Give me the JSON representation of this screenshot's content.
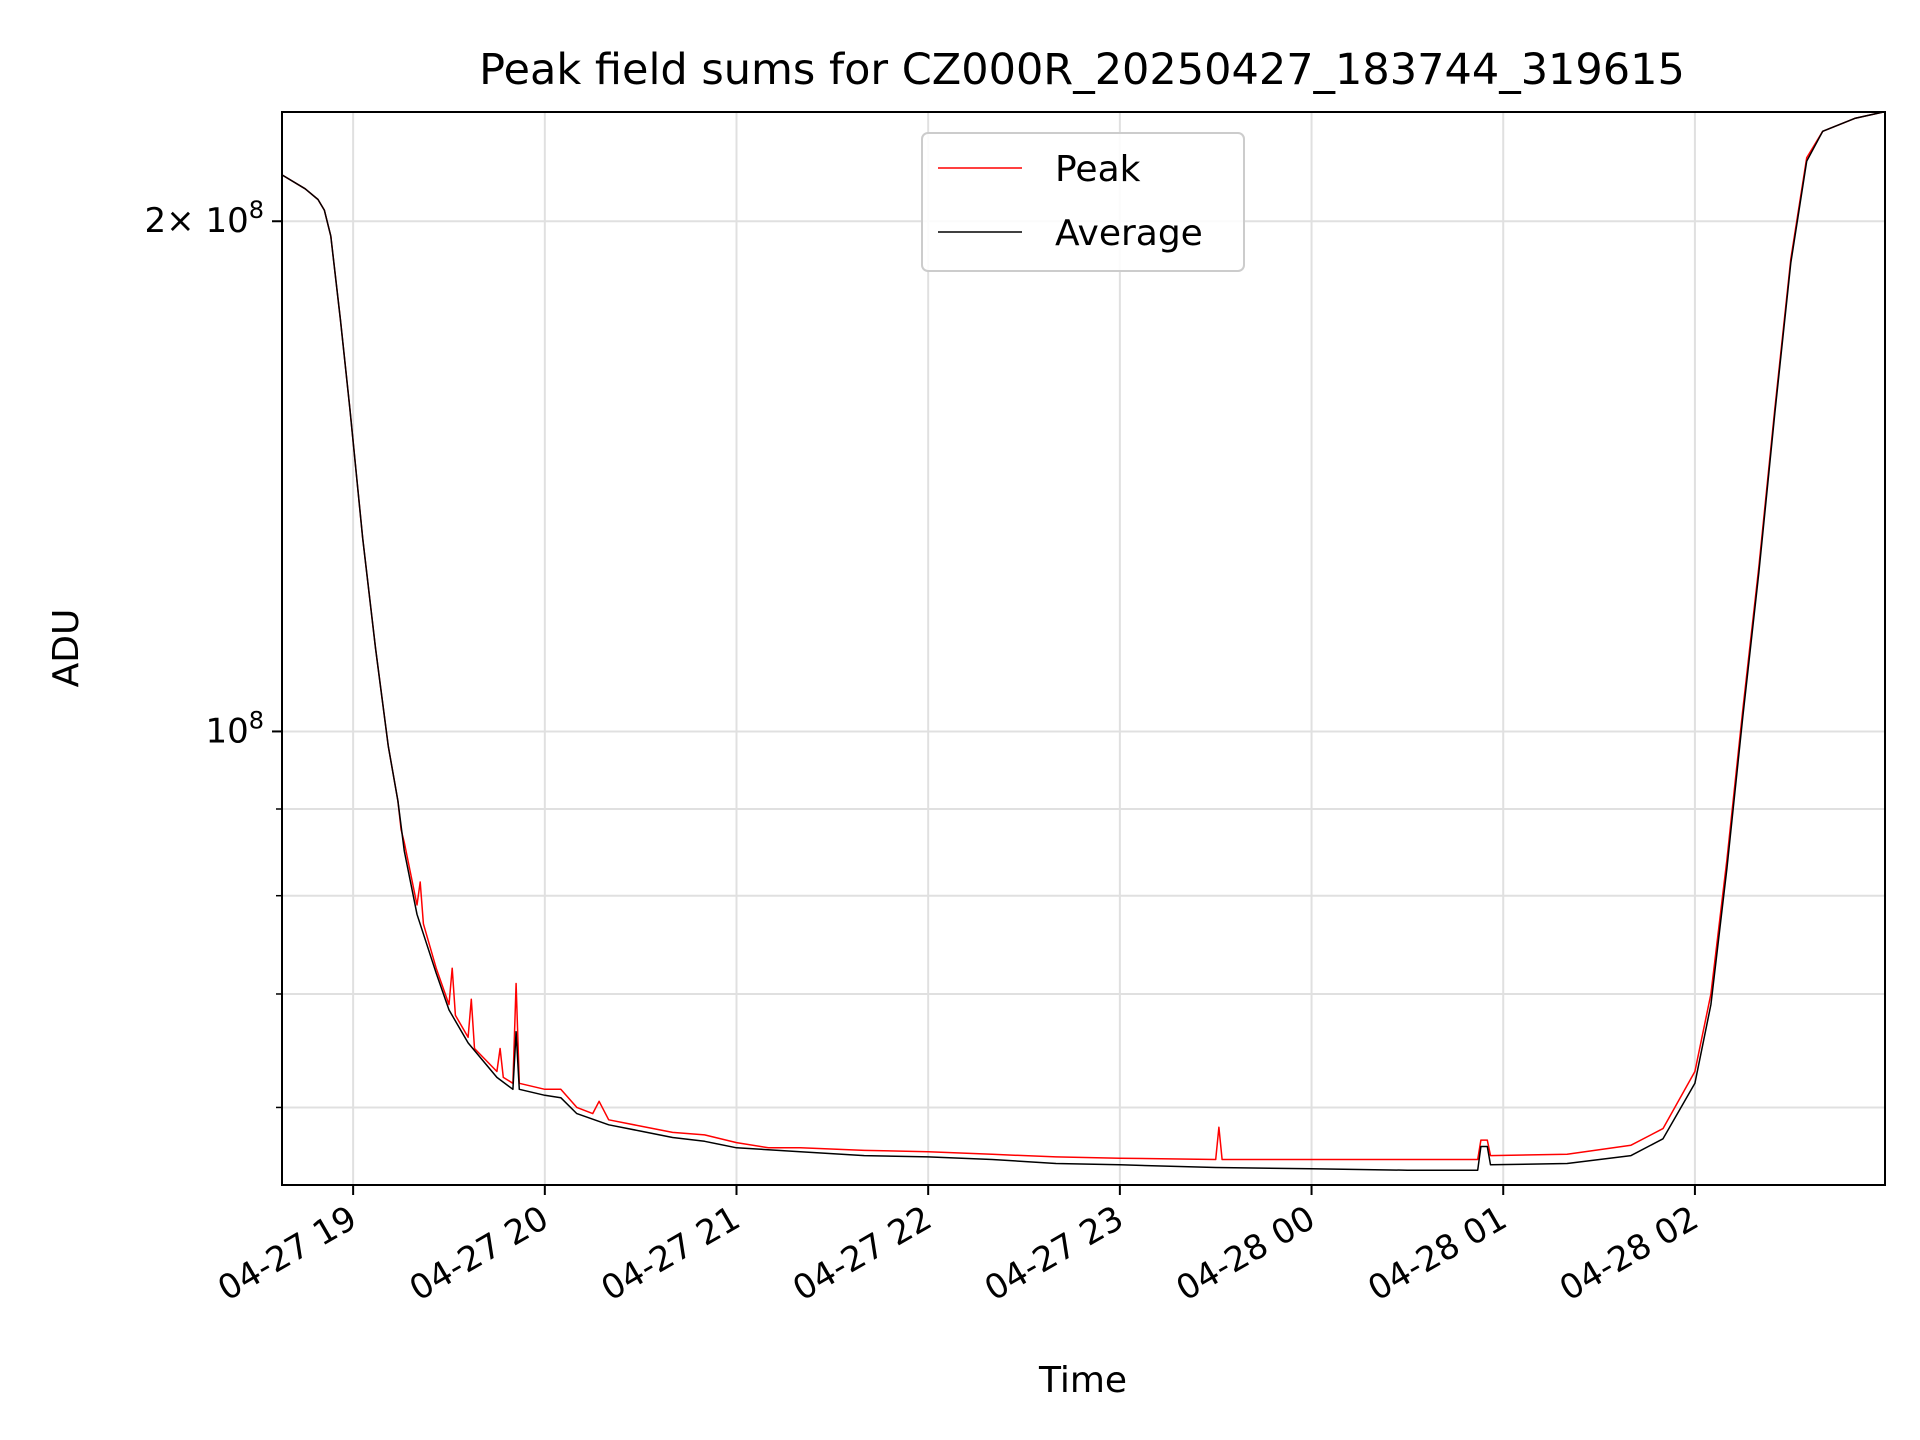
{
  "chart_data": {
    "type": "line",
    "title": "Peak field sums for CZ000R_20250427_183744_319615",
    "xlabel": "Time",
    "ylabel": "ADU",
    "yscale": "log",
    "xlim": [
      "2025-04-27 18:37:44",
      "2025-04-28 02:59:30"
    ],
    "ylim": [
      54000000,
      232000000
    ],
    "grid": true,
    "legend_position": "upper center",
    "x_ticks": [
      {
        "t": "2025-04-27 19:00",
        "label": "04-27 19"
      },
      {
        "t": "2025-04-27 20:00",
        "label": "04-27 20"
      },
      {
        "t": "2025-04-27 21:00",
        "label": "04-27 21"
      },
      {
        "t": "2025-04-27 22:00",
        "label": "04-27 22"
      },
      {
        "t": "2025-04-27 23:00",
        "label": "04-27 23"
      },
      {
        "t": "2025-04-28 00:00",
        "label": "04-28 00"
      },
      {
        "t": "2025-04-28 01:00",
        "label": "04-28 01"
      },
      {
        "t": "2025-04-28 02:00",
        "label": "04-28 02"
      }
    ],
    "y_major_ticks": [
      {
        "value": 100000000,
        "base": "10",
        "exp": "8"
      },
      {
        "value": 200000000,
        "coef": "2×",
        "base": "10",
        "exp": "8"
      }
    ],
    "y_minor_ticks": [
      60000000,
      70000000,
      80000000,
      90000000
    ],
    "series": [
      {
        "name": "Peak",
        "color": "#ff0000",
        "points": [
          [
            "2025-04-27 18:37:44",
            213000000
          ],
          [
            "2025-04-27 18:45",
            209000000
          ],
          [
            "2025-04-27 18:49",
            206000000
          ],
          [
            "2025-04-27 18:51",
            203000000
          ],
          [
            "2025-04-27 18:53",
            196000000
          ],
          [
            "2025-04-27 18:56",
            175000000
          ],
          [
            "2025-04-27 18:59",
            155000000
          ],
          [
            "2025-04-27 19:03",
            130000000
          ],
          [
            "2025-04-27 19:07",
            112000000
          ],
          [
            "2025-04-27 19:11",
            98000000
          ],
          [
            "2025-04-27 19:14",
            91000000
          ],
          [
            "2025-04-27 19:15",
            87500000
          ],
          [
            "2025-04-27 19:16",
            86000000
          ],
          [
            "2025-04-27 19:20",
            79000000
          ],
          [
            "2025-04-27 19:21",
            81500000
          ],
          [
            "2025-04-27 19:22",
            77000000
          ],
          [
            "2025-04-27 19:26",
            72500000
          ],
          [
            "2025-04-27 19:30",
            69000000
          ],
          [
            "2025-04-27 19:31",
            72500000
          ],
          [
            "2025-04-27 19:32",
            68000000
          ],
          [
            "2025-04-27 19:36",
            66000000
          ],
          [
            "2025-04-27 19:37",
            69500000
          ],
          [
            "2025-04-27 19:38",
            65000000
          ],
          [
            "2025-04-27 19:45",
            63000000
          ],
          [
            "2025-04-27 19:46",
            65000000
          ],
          [
            "2025-04-27 19:47",
            62500000
          ],
          [
            "2025-04-27 19:50",
            62000000
          ],
          [
            "2025-04-27 19:51",
            71000000
          ],
          [
            "2025-04-27 19:52",
            62000000
          ],
          [
            "2025-04-27 20:00",
            61500000
          ],
          [
            "2025-04-27 20:05",
            61500000
          ],
          [
            "2025-04-27 20:10",
            60000000
          ],
          [
            "2025-04-27 20:15",
            59500000
          ],
          [
            "2025-04-27 20:17",
            60500000
          ],
          [
            "2025-04-27 20:20",
            59000000
          ],
          [
            "2025-04-27 20:30",
            58500000
          ],
          [
            "2025-04-27 20:40",
            58000000
          ],
          [
            "2025-04-27 20:50",
            57800000
          ],
          [
            "2025-04-27 21:00",
            57200000
          ],
          [
            "2025-04-27 21:10",
            56800000
          ],
          [
            "2025-04-27 21:20",
            56800000
          ],
          [
            "2025-04-27 21:40",
            56600000
          ],
          [
            "2025-04-27 22:00",
            56500000
          ],
          [
            "2025-04-27 22:20",
            56300000
          ],
          [
            "2025-04-27 22:40",
            56100000
          ],
          [
            "2025-04-27 23:00",
            56000000
          ],
          [
            "2025-04-27 23:30",
            55900000
          ],
          [
            "2025-04-27 23:31",
            58400000
          ],
          [
            "2025-04-27 23:32",
            55900000
          ],
          [
            "2025-04-28 00:00",
            55900000
          ],
          [
            "2025-04-28 00:30",
            55900000
          ],
          [
            "2025-04-28 00:52",
            55900000
          ],
          [
            "2025-04-28 00:53",
            57400000
          ],
          [
            "2025-04-28 00:55",
            57400000
          ],
          [
            "2025-04-28 00:56",
            56200000
          ],
          [
            "2025-04-28 01:20",
            56300000
          ],
          [
            "2025-04-28 01:40",
            57000000
          ],
          [
            "2025-04-28 01:50",
            58300000
          ],
          [
            "2025-04-28 02:00",
            63000000
          ],
          [
            "2025-04-28 02:05",
            70000000
          ],
          [
            "2025-04-28 02:10",
            84000000
          ],
          [
            "2025-04-28 02:15",
            103000000
          ],
          [
            "2025-04-28 02:20",
            125000000
          ],
          [
            "2025-04-28 02:25",
            155000000
          ],
          [
            "2025-04-28 02:30",
            190000000
          ],
          [
            "2025-04-28 02:35",
            218000000
          ],
          [
            "2025-04-28 02:40",
            226000000
          ],
          [
            "2025-04-28 02:50",
            230000000
          ],
          [
            "2025-04-28 02:59",
            232000000
          ]
        ]
      },
      {
        "name": "Average",
        "color": "#000000",
        "points": [
          [
            "2025-04-27 18:37:44",
            213000000
          ],
          [
            "2025-04-27 18:45",
            209000000
          ],
          [
            "2025-04-27 18:49",
            206000000
          ],
          [
            "2025-04-27 18:51",
            203000000
          ],
          [
            "2025-04-27 18:53",
            196000000
          ],
          [
            "2025-04-27 18:56",
            175000000
          ],
          [
            "2025-04-27 18:59",
            155000000
          ],
          [
            "2025-04-27 19:03",
            130000000
          ],
          [
            "2025-04-27 19:07",
            112000000
          ],
          [
            "2025-04-27 19:11",
            98000000
          ],
          [
            "2025-04-27 19:14",
            91000000
          ],
          [
            "2025-04-27 19:16",
            85000000
          ],
          [
            "2025-04-27 19:20",
            78000000
          ],
          [
            "2025-04-27 19:26",
            72000000
          ],
          [
            "2025-04-27 19:30",
            68500000
          ],
          [
            "2025-04-27 19:36",
            65500000
          ],
          [
            "2025-04-27 19:45",
            62500000
          ],
          [
            "2025-04-27 19:50",
            61500000
          ],
          [
            "2025-04-27 19:51",
            66500000
          ],
          [
            "2025-04-27 19:52",
            61500000
          ],
          [
            "2025-04-27 20:00",
            61000000
          ],
          [
            "2025-04-27 20:05",
            60800000
          ],
          [
            "2025-04-27 20:10",
            59500000
          ],
          [
            "2025-04-27 20:20",
            58600000
          ],
          [
            "2025-04-27 20:30",
            58100000
          ],
          [
            "2025-04-27 20:40",
            57600000
          ],
          [
            "2025-04-27 20:50",
            57300000
          ],
          [
            "2025-04-27 21:00",
            56800000
          ],
          [
            "2025-04-27 21:20",
            56500000
          ],
          [
            "2025-04-27 21:40",
            56200000
          ],
          [
            "2025-04-27 22:00",
            56100000
          ],
          [
            "2025-04-27 22:20",
            55900000
          ],
          [
            "2025-04-27 22:40",
            55600000
          ],
          [
            "2025-04-27 23:00",
            55500000
          ],
          [
            "2025-04-27 23:30",
            55300000
          ],
          [
            "2025-04-28 00:00",
            55200000
          ],
          [
            "2025-04-28 00:30",
            55100000
          ],
          [
            "2025-04-28 00:52",
            55100000
          ],
          [
            "2025-04-28 00:53",
            56900000
          ],
          [
            "2025-04-28 00:55",
            56900000
          ],
          [
            "2025-04-28 00:56",
            55500000
          ],
          [
            "2025-04-28 01:20",
            55600000
          ],
          [
            "2025-04-28 01:40",
            56200000
          ],
          [
            "2025-04-28 01:50",
            57500000
          ],
          [
            "2025-04-28 02:00",
            62000000
          ],
          [
            "2025-04-28 02:05",
            69000000
          ],
          [
            "2025-04-28 02:10",
            83000000
          ],
          [
            "2025-04-28 02:15",
            102000000
          ],
          [
            "2025-04-28 02:20",
            124000000
          ],
          [
            "2025-04-28 02:25",
            154000000
          ],
          [
            "2025-04-28 02:30",
            189000000
          ],
          [
            "2025-04-28 02:35",
            217000000
          ],
          [
            "2025-04-28 02:40",
            226000000
          ],
          [
            "2025-04-28 02:50",
            230000000
          ],
          [
            "2025-04-28 02:59",
            232000000
          ]
        ]
      }
    ]
  }
}
